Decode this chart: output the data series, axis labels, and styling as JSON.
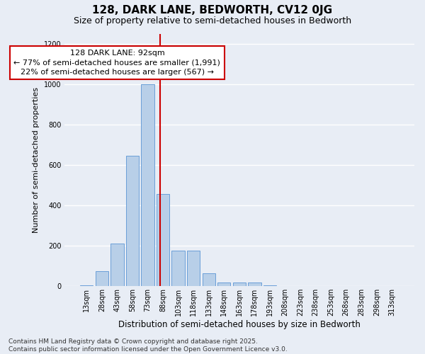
{
  "title": "128, DARK LANE, BEDWORTH, CV12 0JG",
  "subtitle": "Size of property relative to semi-detached houses in Bedworth",
  "xlabel": "Distribution of semi-detached houses by size in Bedworth",
  "ylabel": "Number of semi-detached properties",
  "bar_labels": [
    "13sqm",
    "28sqm",
    "43sqm",
    "58sqm",
    "73sqm",
    "88sqm",
    "103sqm",
    "118sqm",
    "133sqm",
    "148sqm",
    "163sqm",
    "178sqm",
    "193sqm",
    "208sqm",
    "223sqm",
    "238sqm",
    "253sqm",
    "268sqm",
    "283sqm",
    "298sqm",
    "313sqm"
  ],
  "bar_values": [
    5,
    75,
    210,
    645,
    1000,
    455,
    175,
    175,
    65,
    20,
    20,
    20,
    5,
    2,
    1,
    1,
    1,
    1,
    1,
    1,
    1
  ],
  "bar_color": "#b8cfe8",
  "bar_edge_color": "#6a9fd8",
  "annotation_text": "128 DARK LANE: 92sqm\n← 77% of semi-detached houses are smaller (1,991)\n22% of semi-detached houses are larger (567) →",
  "annotation_box_color": "#ffffff",
  "annotation_box_edge_color": "#cc0000",
  "vline_color": "#cc0000",
  "ylim": [
    0,
    1250
  ],
  "yticks": [
    0,
    200,
    400,
    600,
    800,
    1000,
    1200
  ],
  "background_color": "#e8edf5",
  "grid_color": "#ffffff",
  "footer_text": "Contains HM Land Registry data © Crown copyright and database right 2025.\nContains public sector information licensed under the Open Government Licence v3.0.",
  "title_fontsize": 11,
  "subtitle_fontsize": 9,
  "xlabel_fontsize": 8.5,
  "ylabel_fontsize": 8,
  "tick_fontsize": 7,
  "annotation_fontsize": 8,
  "footer_fontsize": 6.5
}
